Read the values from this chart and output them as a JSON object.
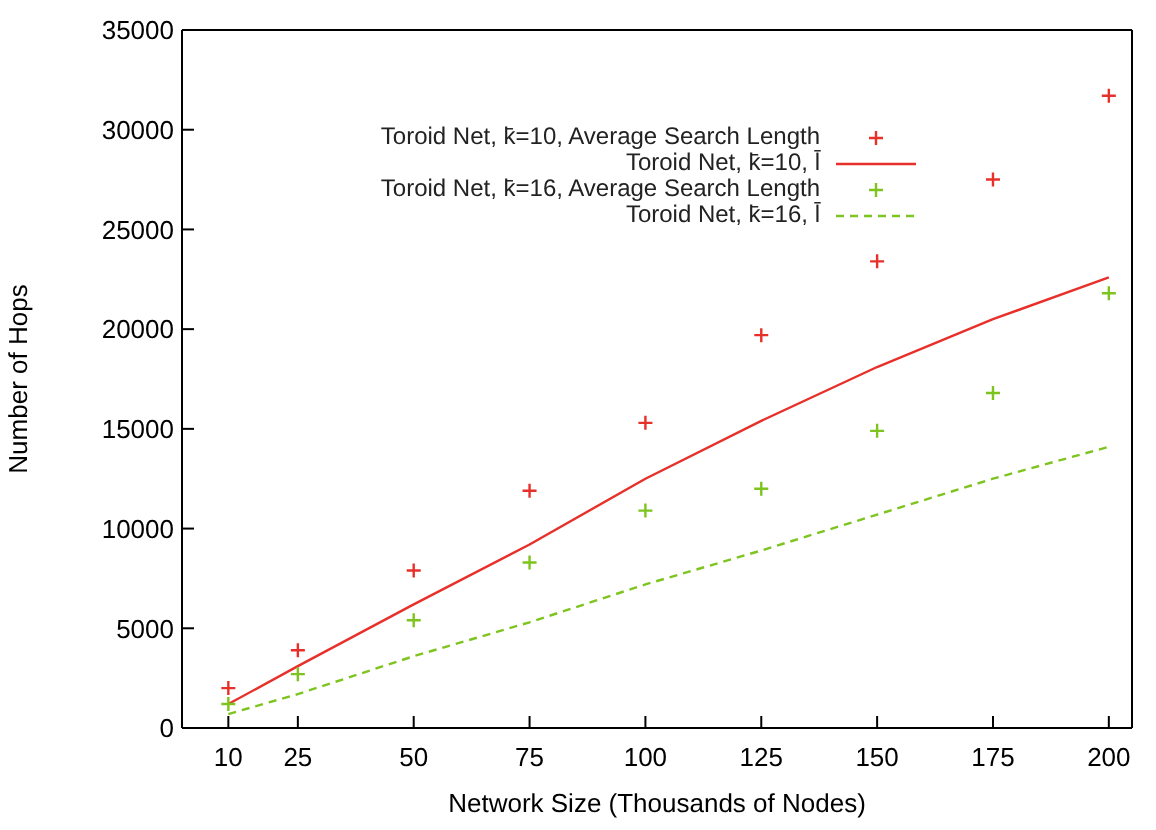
{
  "chart_data": {
    "type": "scatter",
    "xlabel": "Network Size (Thousands of Nodes)",
    "ylabel": "Number of Hops",
    "x": [
      10,
      25,
      50,
      75,
      100,
      125,
      150,
      175,
      200
    ],
    "xlim": [
      0,
      205
    ],
    "xticks": [
      10,
      25,
      50,
      75,
      100,
      125,
      150,
      175,
      200
    ],
    "ylim": [
      0,
      35000
    ],
    "yticks": [
      0,
      5000,
      10000,
      15000,
      20000,
      25000,
      30000,
      35000
    ],
    "grid": false,
    "legend": "top",
    "series": [
      {
        "name": "Toroid Net, k̄=10, Average Search Length",
        "marker": "cross",
        "color": "#e8302a",
        "values": [
          2000,
          3900,
          7900,
          11900,
          15300,
          19700,
          23400,
          27500,
          31700
        ]
      },
      {
        "name": "Toroid Net, k̄=10, l̄",
        "type": "line",
        "line_style": "solid",
        "color": "#e8302a",
        "values": [
          1200,
          3100,
          6200,
          9200,
          12500,
          15400,
          18100,
          20500,
          22600
        ]
      },
      {
        "name": "Toroid Net, k̄=16, Average Search Length",
        "marker": "cross",
        "color": "#7ec41e",
        "values": [
          1200,
          2700,
          5400,
          8300,
          10900,
          12000,
          14900,
          16800,
          21800
        ]
      },
      {
        "name": "Toroid Net, k̄=16, l̄",
        "type": "line",
        "line_style": "dashed",
        "color": "#7ec41e",
        "values": [
          700,
          1700,
          3600,
          5300,
          7200,
          8900,
          10700,
          12500,
          14100
        ]
      }
    ]
  }
}
